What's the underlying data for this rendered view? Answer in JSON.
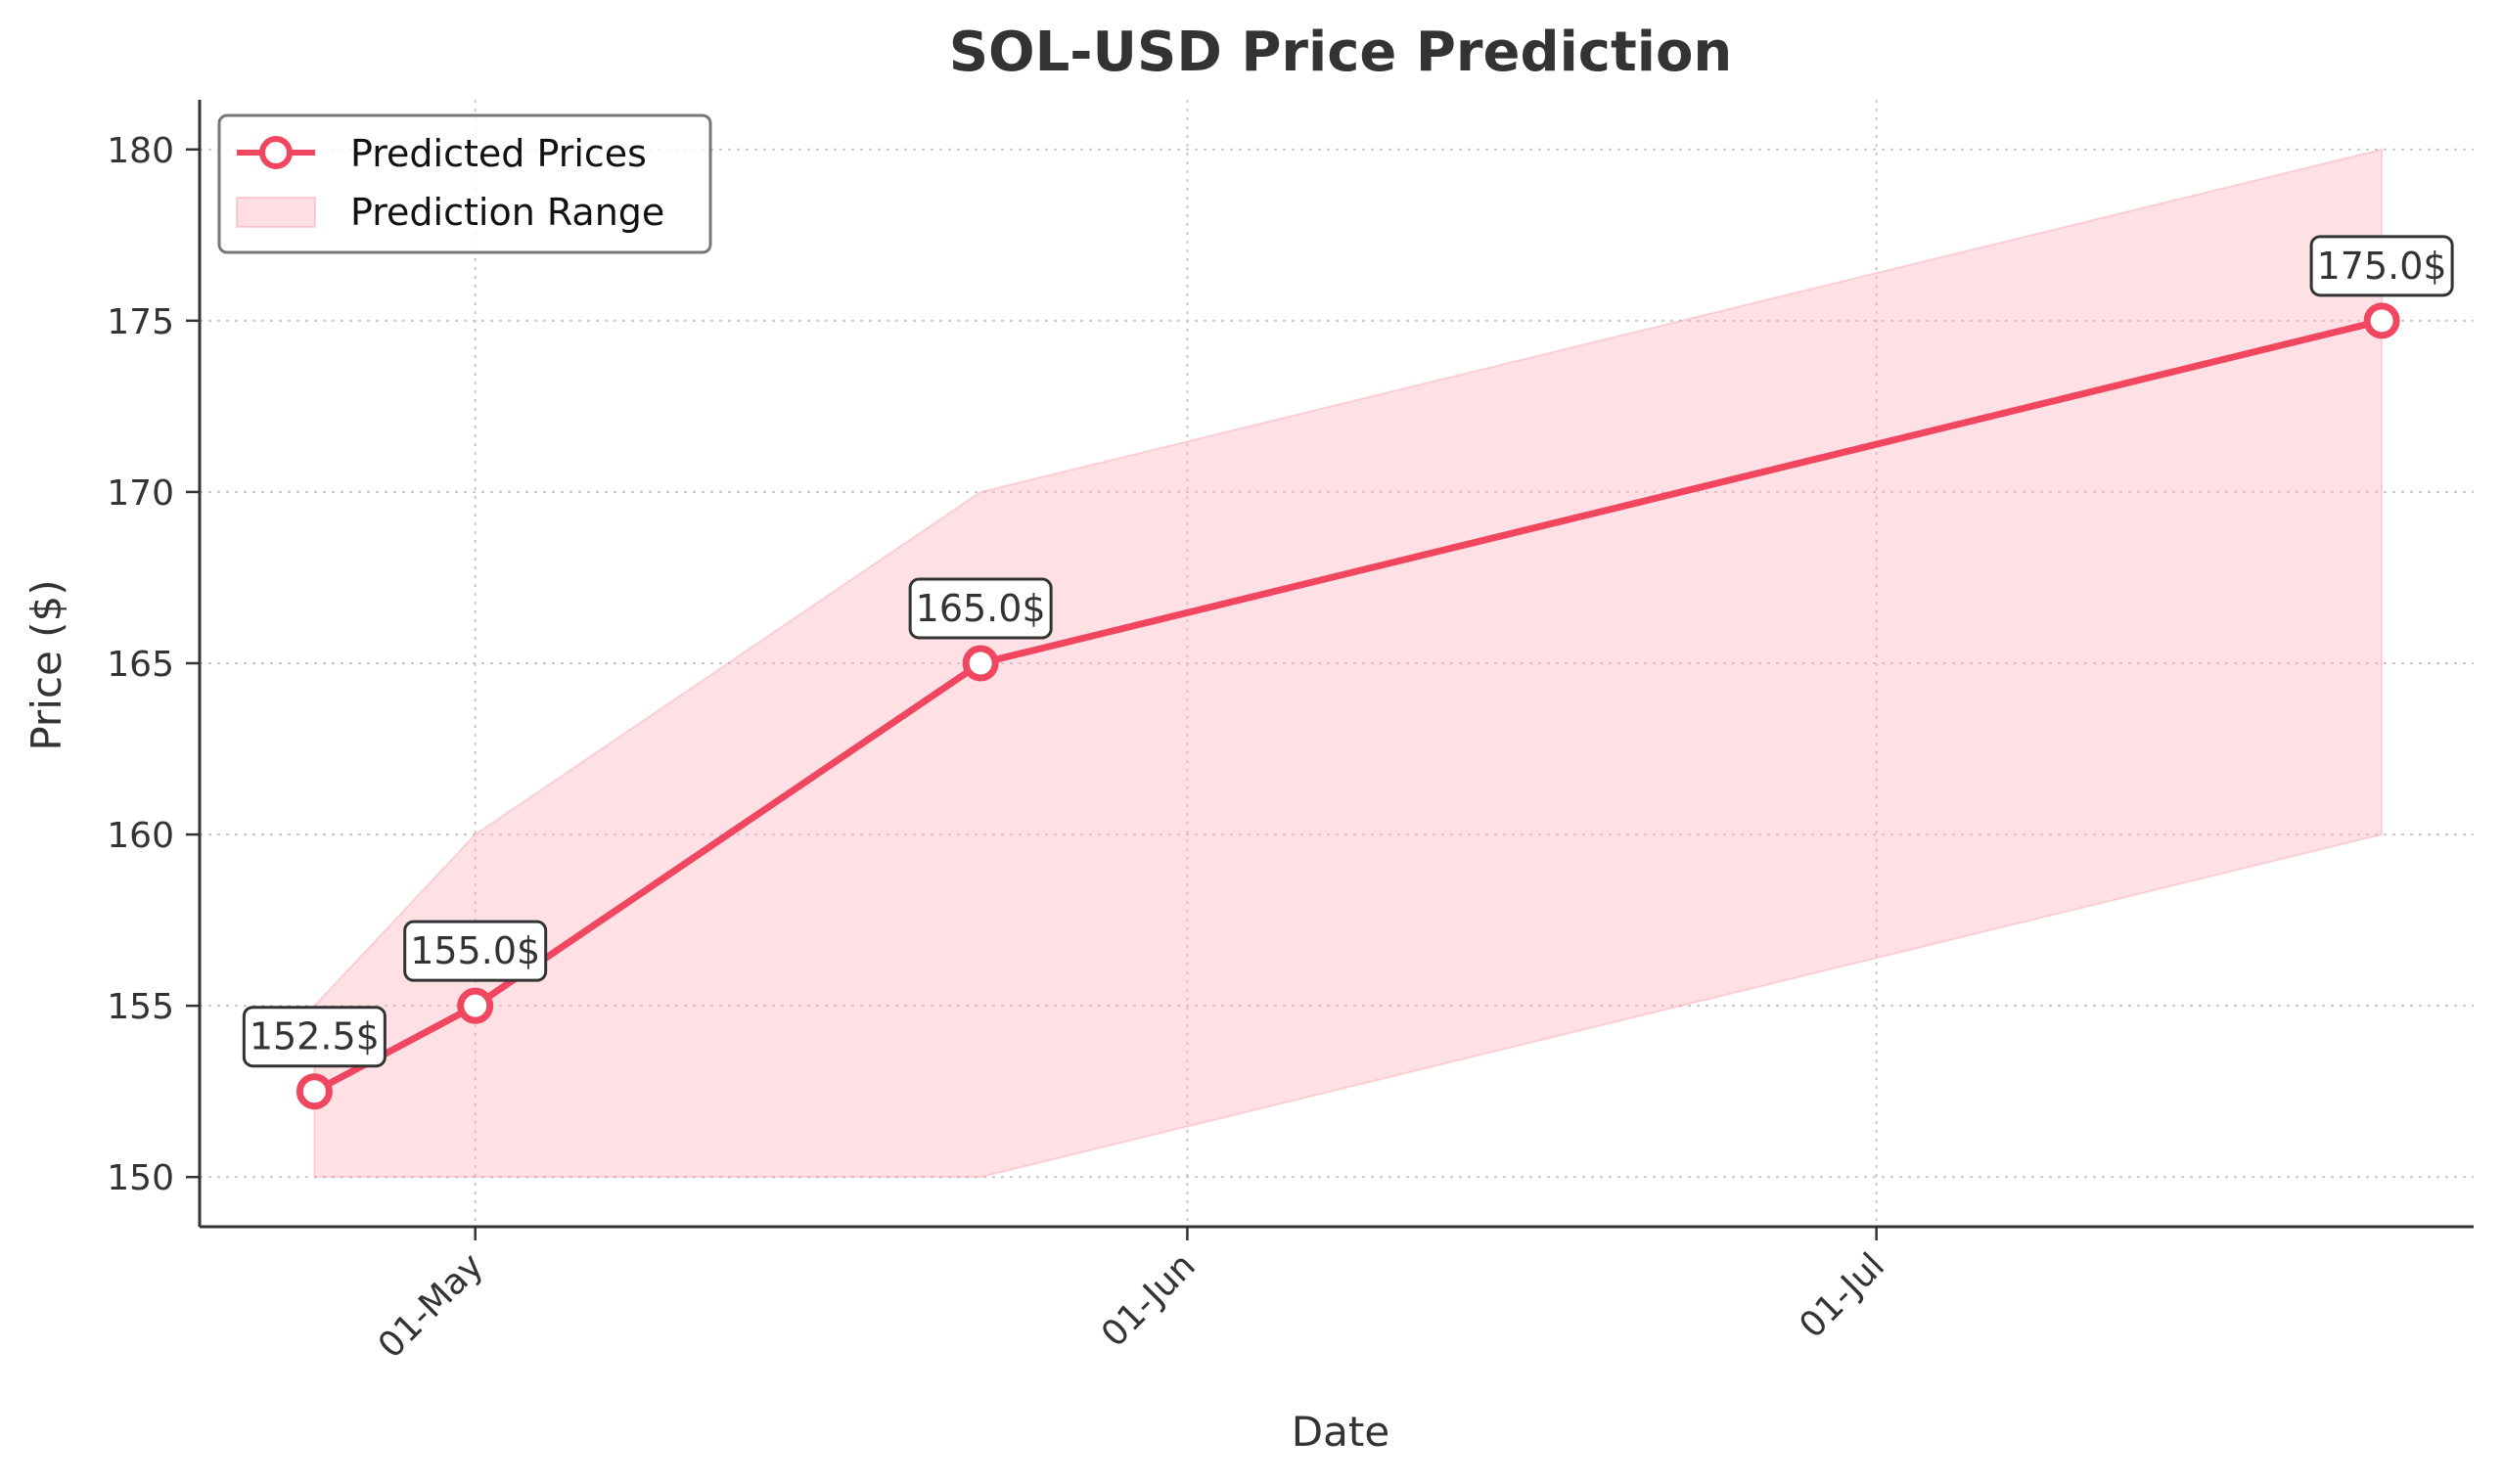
{
  "chart_data": {
    "type": "line",
    "title": "SOL-USD Price Prediction",
    "xlabel": "Date",
    "ylabel": "Price ($)",
    "x": [
      "2024-04-24",
      "2024-05-01",
      "2024-05-23",
      "2024-07-23"
    ],
    "xlim": [
      "2024-04-19",
      "2024-07-27"
    ],
    "ylim": [
      148.55,
      181.45
    ],
    "x_ticks": [
      {
        "date": "2024-05-01",
        "label": "01-May"
      },
      {
        "date": "2024-06-01",
        "label": "01-Jun"
      },
      {
        "date": "2024-07-01",
        "label": "01-Jul"
      }
    ],
    "y_ticks": [
      150,
      155,
      160,
      165,
      170,
      175,
      180
    ],
    "grid": true,
    "series": [
      {
        "name": "Predicted Prices",
        "values": [
          152.5,
          155.0,
          165.0,
          175.0
        ],
        "labels": [
          "152.5$",
          "155.0$",
          "165.0$",
          "175.0$"
        ],
        "color": "#f0465f"
      }
    ],
    "range": {
      "name": "Prediction Range",
      "lower": [
        150,
        150,
        150,
        160
      ],
      "upper": [
        155,
        160,
        170,
        180
      ],
      "color": "#ffb6c1"
    },
    "legend": {
      "placement": "top-left",
      "entries": [
        "Predicted Prices",
        "Prediction Range"
      ]
    }
  }
}
